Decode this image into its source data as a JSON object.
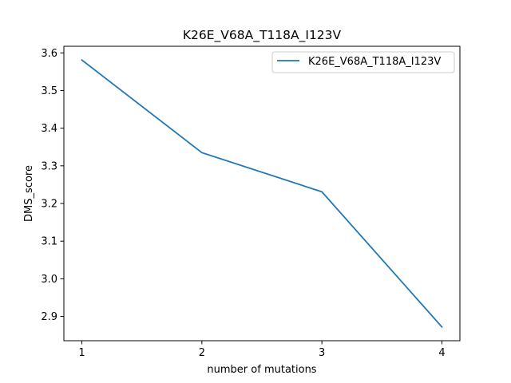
{
  "chart_data": {
    "type": "line",
    "title": "K26E_V68A_T118A_I123V",
    "xlabel": "number of mutations",
    "ylabel": "DMS_score",
    "x": [
      1,
      2,
      3,
      4
    ],
    "series": [
      {
        "name": "K26E_V68A_T118A_I123V",
        "values": [
          3.581,
          3.335,
          3.231,
          2.872
        ],
        "color": "#1f77b4"
      }
    ],
    "xticks": [
      "1",
      "2",
      "3",
      "4"
    ],
    "yticks": [
      "2.9",
      "3.0",
      "3.1",
      "3.2",
      "3.3",
      "3.4",
      "3.5",
      "3.6"
    ],
    "xlim": [
      0.85,
      4.15
    ],
    "ylim": [
      2.8355,
      3.6175
    ],
    "grid": false,
    "legend_position": "top-right"
  }
}
